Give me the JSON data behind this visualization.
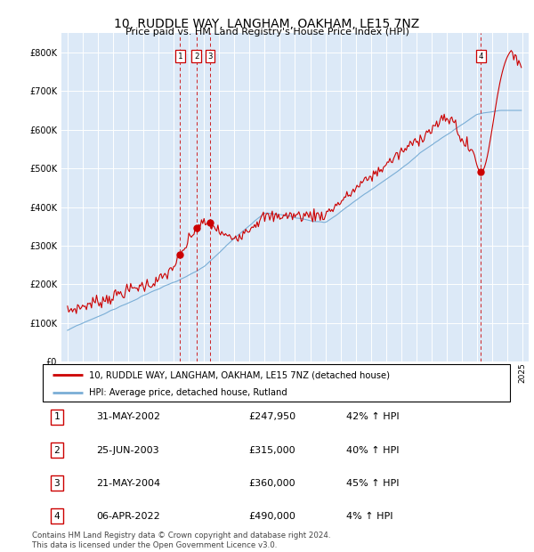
{
  "title": "10, RUDDLE WAY, LANGHAM, OAKHAM, LE15 7NZ",
  "subtitle": "Price paid vs. HM Land Registry's House Price Index (HPI)",
  "background_color": "#dce9f7",
  "red_line_color": "#cc0000",
  "blue_line_color": "#7aaed6",
  "transactions": [
    {
      "num": 1,
      "date": "31-MAY-2002",
      "price": 247950,
      "pct": "42%",
      "x_year": 2002.42
    },
    {
      "num": 2,
      "date": "25-JUN-2003",
      "price": 315000,
      "pct": "40%",
      "x_year": 2003.49
    },
    {
      "num": 3,
      "date": "21-MAY-2004",
      "price": 360000,
      "pct": "45%",
      "x_year": 2004.39
    },
    {
      "num": 4,
      "date": "06-APR-2022",
      "price": 490000,
      "pct": "4%",
      "x_year": 2022.26
    }
  ],
  "legend_label_red": "10, RUDDLE WAY, LANGHAM, OAKHAM, LE15 7NZ (detached house)",
  "legend_label_blue": "HPI: Average price, detached house, Rutland",
  "footer": "Contains HM Land Registry data © Crown copyright and database right 2024.\nThis data is licensed under the Open Government Licence v3.0.",
  "xmin": 1994.6,
  "xmax": 2025.4,
  "ymin": 0,
  "ymax": 850000
}
